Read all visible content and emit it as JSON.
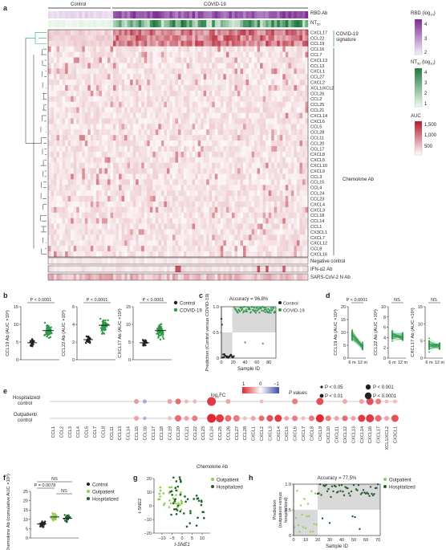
{
  "colors": {
    "control": "#231f20",
    "covid": "#2e9a4a",
    "outpatient": "#8fd14f",
    "hospitalized": "#1f5e2e",
    "rbd_high": "#7a2a93",
    "nt_high": "#1d7a3a",
    "auc_high": "#b2182b",
    "dendro_green": "#2ea56b"
  },
  "panel_a": {
    "letter": "a",
    "group_labels": [
      "Control",
      "COVID-19"
    ],
    "row_labels_top": [
      "RBD Ab",
      "NT50"
    ],
    "chemokines": [
      "CXCL17",
      "CCL22",
      "CCL19",
      "CCL16",
      "CCL7",
      "CXCL13",
      "CCL13",
      "CXCL1",
      "CCL27",
      "CXCL2",
      "XCL1/XCL2",
      "CCL26",
      "CCL2",
      "CCL25",
      "CCL21",
      "CXCL14",
      "CXCL6",
      "CCL5",
      "CCL28",
      "CCL11",
      "CCL20",
      "CCL17",
      "CXCL8",
      "CXCL5",
      "CXCL10",
      "CXCL9",
      "CCL3",
      "CCL15",
      "CCL4",
      "CCL24",
      "CCL23",
      "CXCL4",
      "CXCL3",
      "CCL18",
      "CCL14",
      "CCL1",
      "CX3CL1",
      "CXCL7",
      "CXCL12",
      "CCL8",
      "CXCL16"
    ],
    "bottom_rows": [
      "Negative control",
      "IFN-α2 Ab",
      "SARS-CoV-2 N Ab"
    ],
    "signature_label": "COVID-19 signature",
    "chemokine_ab_label": "Chemokine Ab",
    "legend_rbd": {
      "title": "RBD (log10)",
      "ticks": [
        "4",
        "3",
        "2"
      ]
    },
    "legend_nt": {
      "title": "NT50 (log10)",
      "ticks": [
        "4",
        "3",
        "2",
        "1"
      ]
    },
    "legend_auc": {
      "title": "AUC",
      "ticks": [
        "1,500",
        "1,000",
        "500"
      ]
    }
  },
  "panel_b": {
    "letter": "b",
    "plots": [
      {
        "ylabel": "CCL19 Ab (AUC ×10³)",
        "yticks": [
          "0",
          "5",
          "10",
          "15"
        ],
        "pvalue": "P < 0.0001"
      },
      {
        "ylabel": "CCL22 Ab (AUC ×10³)",
        "yticks": [
          "0",
          "2",
          "4",
          "6"
        ],
        "pvalue": "P < 0.0001"
      },
      {
        "ylabel": "CXCL17 Ab (AUC ×10²)",
        "yticks": [
          "0",
          "5",
          "10",
          "15"
        ],
        "pvalue": "P < 0.0001"
      }
    ],
    "legend": [
      "Control",
      "COVID-19"
    ]
  },
  "panel_c": {
    "letter": "c",
    "title": "Accuracy = 96.8%",
    "ylabel": "Prediction (Control versus COVID-19)",
    "xlabel": "Sample ID",
    "xticks": [
      "0",
      "20",
      "40",
      "60",
      "80"
    ],
    "yticks": [
      "0",
      "0.5",
      "1.0"
    ],
    "legend": [
      "Control",
      "COVID-19"
    ]
  },
  "panel_d": {
    "letter": "d",
    "plots": [
      {
        "ylabel": "CCL19 Ab (AUC ×10³)",
        "yticks": [
          "0",
          "5",
          "10",
          "15",
          "20"
        ],
        "pvalue": "P < 0.0001"
      },
      {
        "ylabel": "CCL22 Ab (AUC ×10³)",
        "yticks": [
          "0",
          "2",
          "4",
          "6",
          "8",
          "10"
        ],
        "pvalue": "NS"
      },
      {
        "ylabel": "CXCL17 Ab (AUC ×10²)",
        "yticks": [
          "0",
          "5",
          "10",
          "15"
        ],
        "pvalue": "NS"
      }
    ],
    "xticks": [
      "6 m",
      "12 m"
    ]
  },
  "panel_e": {
    "letter": "e",
    "rows": [
      "Hospitalized/ control",
      "Outpatient/ control"
    ],
    "chemokines": [
      "CCL1",
      "CCL2",
      "CCL3",
      "CCL4",
      "CCL5",
      "CCL7",
      "CCL8",
      "CCL11",
      "CCL13",
      "CCL14",
      "CCL15",
      "CCL16",
      "CCL17",
      "CCL18",
      "CCL19",
      "CCL20",
      "CCL21",
      "CCL22",
      "CCL23",
      "CCL24",
      "CCL25",
      "CCL26",
      "CCL27",
      "CCL28",
      "CXCL1",
      "CXCL2",
      "CXCL3",
      "CXCL4",
      "CXCL5",
      "CXCL6",
      "CXCL7",
      "CXCL8",
      "CXCL9",
      "CXCL10",
      "CXCL11",
      "CXCL12",
      "CXCL13",
      "CXCL14",
      "CXCL16",
      "CXCL17",
      "XCL1/XCL2",
      "CX3CL1"
    ],
    "xlabel": "Chemokine Ab",
    "logfc_legend": {
      "title": "log2FC",
      "ticks": [
        "1",
        "0",
        "−1"
      ]
    },
    "pvalue_legend": {
      "title": "P values",
      "items": [
        "P < 0.05",
        "P < 0.01",
        "P < 0.001",
        "P < 0.0001"
      ]
    }
  },
  "panel_f": {
    "letter": "f",
    "ylabel": "Chemokine Ab (cumulative AUC ×10³)",
    "yticks": [
      "0",
      "5",
      "10",
      "15",
      "20",
      "25"
    ],
    "p1": "NS",
    "p2": "P = 0.0078",
    "p3": "NS",
    "legend": [
      "Control",
      "Outpatient",
      "Hospitalized"
    ]
  },
  "panel_g": {
    "letter": "g",
    "xlabel": "t-SNE1",
    "ylabel": "t-SNE2",
    "xticks": [
      "−10",
      "−5",
      "0",
      "5",
      "10"
    ],
    "yticks": [
      "−20",
      "−10",
      "0",
      "10",
      "20"
    ],
    "legend": [
      "Outpatient",
      "Hospitalized"
    ]
  },
  "panel_h": {
    "letter": "h",
    "title": "Accuracy = 77.5%",
    "ylabel": "Prediction (outpatient versus hospitalized)",
    "xlabel": "Sample ID",
    "xticks": [
      "0",
      "10",
      "20",
      "30",
      "40",
      "50",
      "60",
      "70"
    ],
    "yticks": [
      "0",
      "0.5",
      "1.0"
    ],
    "legend": [
      "Outpatient",
      "Hospitalized"
    ]
  }
}
